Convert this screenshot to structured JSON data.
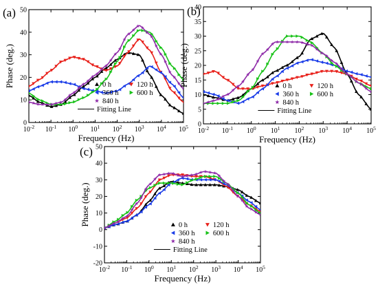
{
  "figure": {
    "panel_labels": [
      "(a)",
      "(b)",
      "(c)"
    ]
  },
  "legend": {
    "entries": [
      {
        "label": "0 h",
        "color": "#000000",
        "marker": "triangle-up"
      },
      {
        "label": "120 h",
        "color": "#e8201a",
        "marker": "triangle-down"
      },
      {
        "label": "360 h",
        "color": "#1a3ce8",
        "marker": "triangle-left"
      },
      {
        "label": "600 h",
        "color": "#19c219",
        "marker": "triangle-right"
      },
      {
        "label": "840 h",
        "color": "#8e2aa8",
        "marker": "star"
      }
    ],
    "fit_label": "Fitting Line"
  },
  "chart_data": [
    {
      "panel": "(a)",
      "type": "scatter",
      "xlabel": "Frequency (Hz)",
      "ylabel": "Phase (deg.)",
      "xscale": "log",
      "xlim": [
        0.01,
        100000
      ],
      "ylim": [
        0,
        50
      ],
      "xtick_exponents": [
        -2,
        -1,
        0,
        1,
        2,
        3,
        4,
        5
      ],
      "yticks": [
        0,
        10,
        20,
        30,
        40,
        50
      ],
      "grid": false,
      "legend_position": "lower-center",
      "series": [
        {
          "name": "0 h",
          "x": [
            0.01,
            0.03,
            0.1,
            0.3,
            1,
            3,
            10,
            30,
            100,
            300,
            1000,
            3000,
            10000,
            30000,
            100000
          ],
          "y": [
            12,
            9,
            7,
            8,
            12,
            16,
            20,
            24,
            28,
            31,
            30,
            21,
            12,
            7,
            4
          ]
        },
        {
          "name": "120 h",
          "x": [
            0.01,
            0.03,
            0.1,
            0.3,
            1,
            3,
            10,
            30,
            100,
            300,
            1000,
            3000,
            10000,
            30000,
            100000
          ],
          "y": [
            16,
            19,
            23,
            27,
            29,
            28,
            25,
            23,
            25,
            31,
            37,
            32,
            22,
            14,
            9
          ]
        },
        {
          "name": "360 h",
          "x": [
            0.01,
            0.03,
            0.1,
            0.3,
            1,
            3,
            10,
            30,
            100,
            300,
            1000,
            3000,
            10000,
            30000,
            100000
          ],
          "y": [
            14,
            16,
            18,
            18,
            17,
            15,
            14,
            13,
            14,
            17,
            21,
            25,
            22,
            17,
            11
          ]
        },
        {
          "name": "600 h",
          "x": [
            0.01,
            0.03,
            0.1,
            0.3,
            1,
            3,
            10,
            30,
            100,
            300,
            1000,
            3000,
            10000,
            30000,
            100000
          ],
          "y": [
            13,
            10,
            8,
            8,
            9,
            11,
            14,
            19,
            27,
            36,
            41,
            40,
            33,
            25,
            19
          ]
        },
        {
          "name": "840 h",
          "x": [
            0.01,
            0.03,
            0.1,
            0.3,
            1,
            3,
            10,
            30,
            100,
            300,
            1000,
            3000,
            10000,
            30000,
            100000
          ],
          "y": [
            9,
            8,
            8,
            9,
            13,
            17,
            21,
            25,
            31,
            39,
            43,
            39,
            30,
            21,
            15
          ]
        }
      ]
    },
    {
      "panel": "(b)",
      "type": "scatter",
      "xlabel": "Frequency (Hz)",
      "ylabel": "Phase (deg.)",
      "xscale": "log",
      "xlim": [
        0.01,
        100000
      ],
      "ylim": [
        0,
        40
      ],
      "xtick_exponents": [
        -2,
        -1,
        0,
        1,
        2,
        3,
        4,
        5
      ],
      "yticks": [
        0,
        5,
        10,
        15,
        20,
        25,
        30,
        35,
        40
      ],
      "grid": false,
      "legend_position": "lower-center",
      "series": [
        {
          "name": "0 h",
          "x": [
            0.01,
            0.03,
            0.1,
            0.3,
            1,
            3,
            10,
            30,
            100,
            300,
            1000,
            3000,
            10000,
            30000,
            100000
          ],
          "y": [
            10,
            9,
            8,
            9,
            12,
            15,
            18,
            20,
            23,
            29,
            31,
            26,
            17,
            10,
            5
          ]
        },
        {
          "name": "120 h",
          "x": [
            0.01,
            0.03,
            0.1,
            0.3,
            1,
            3,
            10,
            30,
            100,
            300,
            1000,
            3000,
            10000,
            30000,
            100000
          ],
          "y": [
            17,
            18,
            15,
            12,
            12,
            13,
            14,
            15,
            16,
            17,
            18,
            18,
            17,
            15,
            13
          ]
        },
        {
          "name": "360 h",
          "x": [
            0.01,
            0.03,
            0.1,
            0.3,
            1,
            3,
            10,
            30,
            100,
            300,
            1000,
            3000,
            10000,
            30000,
            100000
          ],
          "y": [
            11,
            10,
            8,
            7,
            9,
            12,
            16,
            19,
            21,
            22,
            21,
            20,
            18,
            17,
            16
          ]
        },
        {
          "name": "600 h",
          "x": [
            0.01,
            0.03,
            0.1,
            0.3,
            1,
            3,
            10,
            30,
            100,
            300,
            1000,
            3000,
            10000,
            30000,
            100000
          ],
          "y": [
            7,
            7,
            7,
            8,
            12,
            18,
            25,
            30,
            30,
            28,
            24,
            20,
            17,
            14,
            12
          ]
        },
        {
          "name": "840 h",
          "x": [
            0.01,
            0.03,
            0.1,
            0.3,
            1,
            3,
            10,
            30,
            100,
            300,
            1000,
            3000,
            10000,
            30000,
            100000
          ],
          "y": [
            7,
            8,
            10,
            13,
            18,
            24,
            28,
            28,
            28,
            27,
            24,
            21,
            17,
            14,
            11
          ]
        }
      ]
    },
    {
      "panel": "(c)",
      "type": "scatter",
      "xlabel": "Frequency (Hz)",
      "ylabel": "Phase (deg.)",
      "xscale": "log",
      "xlim": [
        0.01,
        100000
      ],
      "ylim": [
        -20,
        50
      ],
      "xtick_exponents": [
        -2,
        -1,
        0,
        1,
        2,
        3,
        4,
        5
      ],
      "yticks": [
        -20,
        -10,
        0,
        10,
        20,
        30,
        40,
        50
      ],
      "grid": false,
      "legend_position": "lower-center",
      "series": [
        {
          "name": "0 h",
          "x": [
            0.01,
            0.03,
            0.1,
            0.3,
            1,
            3,
            10,
            30,
            100,
            300,
            1000,
            3000,
            10000,
            30000,
            100000
          ],
          "y": [
            1,
            3,
            5,
            9,
            17,
            25,
            29,
            28,
            27,
            27,
            27,
            26,
            24,
            20,
            16
          ]
        },
        {
          "name": "120 h",
          "x": [
            0.01,
            0.03,
            0.1,
            0.3,
            1,
            3,
            10,
            30,
            100,
            300,
            1000,
            3000,
            10000,
            30000,
            100000
          ],
          "y": [
            1,
            4,
            7,
            13,
            22,
            30,
            33,
            33,
            32,
            32,
            30,
            26,
            20,
            15,
            11
          ]
        },
        {
          "name": "360 h",
          "x": [
            0.01,
            0.03,
            0.1,
            0.3,
            1,
            3,
            10,
            30,
            100,
            300,
            1000,
            3000,
            10000,
            30000,
            100000
          ],
          "y": [
            1,
            3,
            5,
            9,
            15,
            22,
            28,
            31,
            30,
            30,
            30,
            27,
            22,
            17,
            12
          ]
        },
        {
          "name": "600 h",
          "x": [
            0.01,
            0.03,
            0.1,
            0.3,
            1,
            3,
            10,
            30,
            100,
            300,
            1000,
            3000,
            10000,
            30000,
            100000
          ],
          "y": [
            1,
            5,
            10,
            18,
            25,
            28,
            28,
            27,
            30,
            32,
            32,
            28,
            22,
            15,
            10
          ]
        },
        {
          "name": "840 h",
          "x": [
            0.01,
            0.03,
            0.1,
            0.3,
            1,
            3,
            10,
            30,
            100,
            300,
            1000,
            3000,
            10000,
            30000,
            100000
          ],
          "y": [
            1,
            4,
            8,
            16,
            27,
            33,
            34,
            32,
            33,
            35,
            34,
            28,
            20,
            13,
            9
          ]
        }
      ]
    }
  ]
}
